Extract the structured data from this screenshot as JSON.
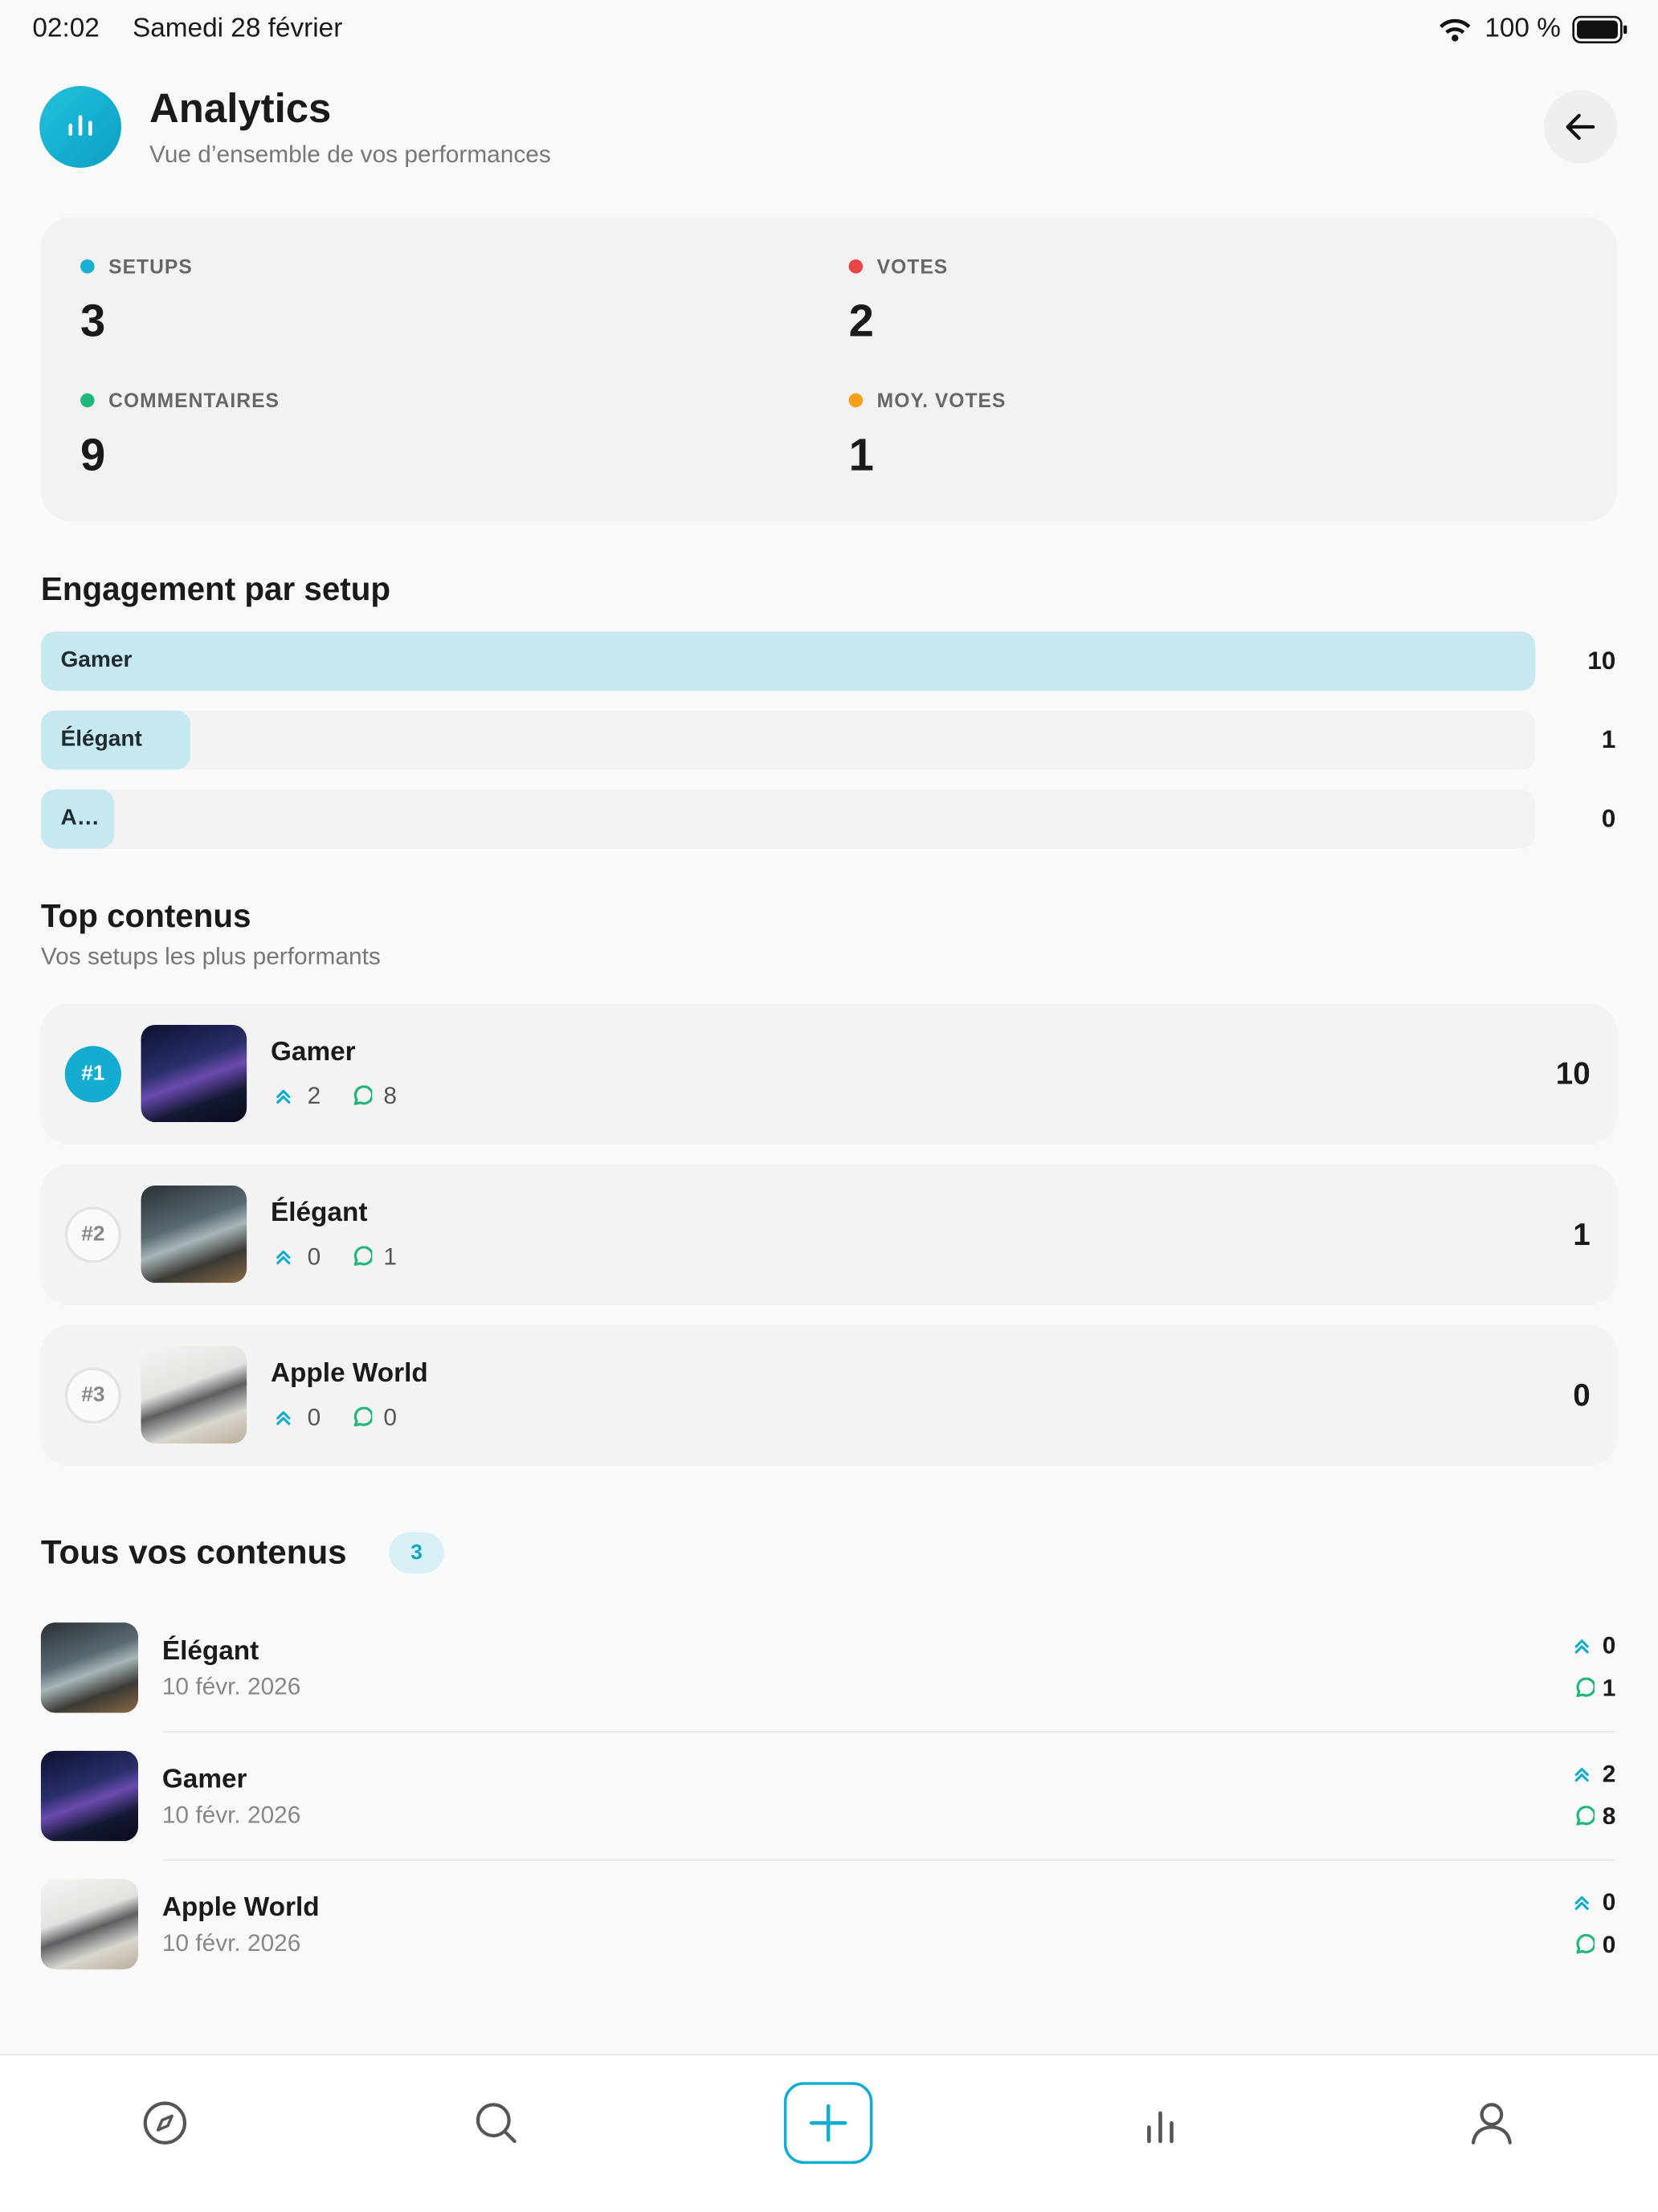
{
  "status_bar": {
    "time": "02:02",
    "date": "Samedi 28 février",
    "battery": "100 %"
  },
  "header": {
    "title": "Analytics",
    "subtitle": "Vue d’ensemble de vos performances"
  },
  "stats": [
    {
      "label": "SETUPS",
      "value": 3,
      "color": "#1ab0d4"
    },
    {
      "label": "VOTES",
      "value": 2,
      "color": "#e84545"
    },
    {
      "label": "COMMENTAIRES",
      "value": 9,
      "color": "#1fb87a"
    },
    {
      "label": "MOY. VOTES",
      "value": 1,
      "color": "#f5a01a"
    }
  ],
  "engagement": {
    "title": "Engagement par setup",
    "items": [
      {
        "label": "Gamer",
        "value": 10
      },
      {
        "label": "Élégant",
        "value": 1
      },
      {
        "label": "A…",
        "value": 0
      }
    ]
  },
  "top": {
    "title": "Top contenus",
    "subtitle": "Vos setups les plus performants",
    "items": [
      {
        "rank": "#1",
        "name": "Gamer",
        "votes": 2,
        "comments": 8,
        "score": 10
      },
      {
        "rank": "#2",
        "name": "Élégant",
        "votes": 0,
        "comments": 1,
        "score": 1
      },
      {
        "rank": "#3",
        "name": "Apple World",
        "votes": 0,
        "comments": 0,
        "score": 0
      }
    ]
  },
  "all": {
    "title": "Tous vos contenus",
    "count": 3,
    "items": [
      {
        "name": "Élégant",
        "date": "10 févr. 2026",
        "votes": 0,
        "comments": 1
      },
      {
        "name": "Gamer",
        "date": "10 févr. 2026",
        "votes": 2,
        "comments": 8
      },
      {
        "name": "Apple World",
        "date": "10 févr. 2026",
        "votes": 0,
        "comments": 0
      }
    ]
  }
}
